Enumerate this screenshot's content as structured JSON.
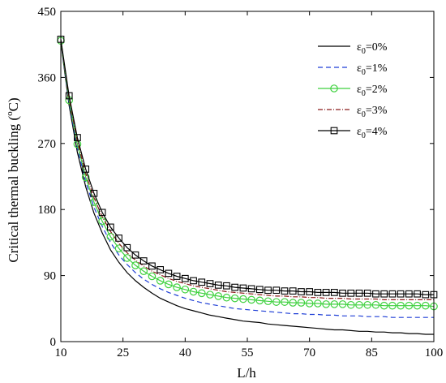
{
  "chart_data": {
    "type": "line",
    "xlabel": "L/h",
    "ylabel_main": "Critical thermal buckling (",
    "ylabel_sup": "o",
    "ylabel_end": "C)",
    "xlim": [
      10,
      100
    ],
    "ylim": [
      0,
      450
    ],
    "xticks": [
      "10",
      "25",
      "40",
      "55",
      "70",
      "85",
      "100"
    ],
    "yticks": [
      "0",
      "90",
      "180",
      "270",
      "360",
      "450"
    ],
    "grid": false,
    "legend_position": "top-right",
    "x": [
      10,
      12,
      14,
      16,
      18,
      20,
      22,
      24,
      26,
      28,
      30,
      32,
      34,
      36,
      38,
      40,
      42,
      44,
      46,
      48,
      50,
      52,
      54,
      56,
      58,
      60,
      62,
      64,
      66,
      68,
      70,
      72,
      74,
      76,
      78,
      80,
      82,
      84,
      86,
      88,
      90,
      92,
      94,
      96,
      98,
      100
    ],
    "series": [
      {
        "legend_symbol": "ε",
        "legend_sub": "0",
        "legend_rest": "=0%",
        "color": "#000000",
        "dash": "",
        "marker": "none",
        "values": [
          408,
          322,
          258,
          211,
          175,
          148,
          125,
          108,
          94,
          83,
          74,
          66,
          59,
          54,
          49,
          45,
          42,
          39,
          36,
          34,
          32,
          30,
          28,
          27,
          26,
          24,
          23,
          22,
          21,
          20,
          19,
          18,
          17,
          16,
          16,
          15,
          14,
          14,
          13,
          13,
          12,
          12,
          11,
          11,
          10,
          10
        ]
      },
      {
        "legend_symbol": "ε",
        "legend_sub": "0",
        "legend_rest": "=1%",
        "color": "#1f3fd6",
        "dash": "6,4",
        "marker": "none",
        "values": [
          409,
          326,
          264,
          218,
          183,
          157,
          135,
          118,
          105,
          94,
          85,
          78,
          72,
          67,
          63,
          59,
          56,
          53,
          51,
          49,
          47,
          45,
          44,
          43,
          42,
          41,
          40,
          39,
          38,
          38,
          37,
          37,
          36,
          36,
          35,
          35,
          35,
          34,
          34,
          34,
          33,
          33,
          33,
          33,
          33,
          33
        ]
      },
      {
        "legend_symbol": "ε",
        "legend_sub": "0",
        "legend_rest": "=2%",
        "color": "#3fd13f",
        "dash": "",
        "marker": "circle",
        "values": [
          410,
          329,
          269,
          224,
          190,
          164,
          143,
          127,
          114,
          104,
          96,
          89,
          83,
          78,
          74,
          71,
          68,
          66,
          64,
          62,
          60,
          59,
          58,
          57,
          56,
          55,
          54,
          54,
          53,
          53,
          52,
          52,
          51,
          51,
          51,
          50,
          50,
          50,
          50,
          49,
          49,
          49,
          49,
          49,
          49,
          48
        ]
      },
      {
        "legend_symbol": "ε",
        "legend_sub": "0",
        "legend_rest": "=3%",
        "color": "#8b1a1a",
        "dash": "6,2,1,2",
        "marker": "none",
        "values": [
          411,
          332,
          273,
          229,
          196,
          170,
          150,
          134,
          121,
          111,
          103,
          96,
          91,
          86,
          82,
          79,
          76,
          74,
          72,
          70,
          68,
          67,
          66,
          65,
          64,
          63,
          62,
          62,
          61,
          61,
          60,
          60,
          59,
          59,
          59,
          58,
          58,
          58,
          58,
          57,
          57,
          57,
          57,
          57,
          57,
          57
        ]
      },
      {
        "legend_symbol": "ε",
        "legend_sub": "0",
        "legend_rest": "=4%",
        "color": "#000000",
        "dash": "",
        "marker": "square",
        "values": [
          412,
          335,
          278,
          235,
          202,
          176,
          156,
          141,
          128,
          118,
          110,
          103,
          98,
          93,
          89,
          86,
          83,
          81,
          79,
          77,
          76,
          74,
          73,
          72,
          71,
          70,
          70,
          69,
          69,
          68,
          68,
          67,
          67,
          67,
          66,
          66,
          66,
          66,
          65,
          65,
          65,
          65,
          65,
          65,
          64,
          64
        ]
      }
    ]
  }
}
